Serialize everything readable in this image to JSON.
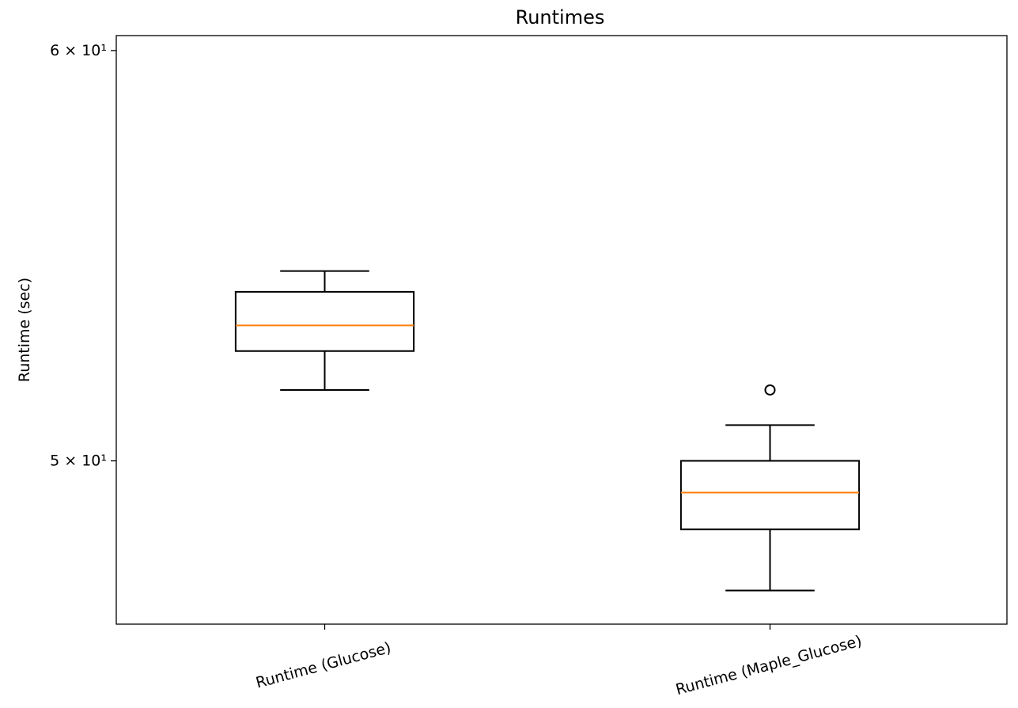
{
  "chart_data": {
    "type": "box",
    "title": "Runtimes",
    "xlabel": "",
    "ylabel": "Runtime (sec)",
    "yscale": "log",
    "ylim": [
      46.5,
      60.4
    ],
    "yticks": [
      {
        "value": 50,
        "label": "5 × 10¹"
      },
      {
        "value": 60,
        "label": "6 × 10¹"
      }
    ],
    "categories": [
      "Runtime (Glucose)",
      "Runtime (Maple_Glucose)"
    ],
    "boxes": [
      {
        "name": "Runtime (Glucose)",
        "whisker_low": 51.6,
        "q1": 52.5,
        "median": 53.1,
        "q3": 53.9,
        "whisker_high": 54.4,
        "outliers": []
      },
      {
        "name": "Runtime (Maple_Glucose)",
        "whisker_low": 47.2,
        "q1": 48.5,
        "median": 49.3,
        "q3": 50.0,
        "whisker_high": 50.8,
        "outliers": [
          51.6
        ]
      }
    ],
    "colors": {
      "box": "#000000",
      "median": "#ff7f0e"
    },
    "grid": false,
    "legend": "none"
  }
}
